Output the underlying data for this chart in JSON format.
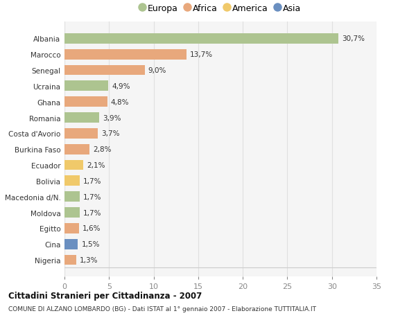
{
  "countries": [
    "Albania",
    "Marocco",
    "Senegal",
    "Ucraina",
    "Ghana",
    "Romania",
    "Costa d'Avorio",
    "Burkina Faso",
    "Ecuador",
    "Bolivia",
    "Macedonia d/N.",
    "Moldova",
    "Egitto",
    "Cina",
    "Nigeria"
  ],
  "values": [
    30.7,
    13.7,
    9.0,
    4.9,
    4.8,
    3.9,
    3.7,
    2.8,
    2.1,
    1.7,
    1.7,
    1.7,
    1.6,
    1.5,
    1.3
  ],
  "labels": [
    "30,7%",
    "13,7%",
    "9,0%",
    "4,9%",
    "4,8%",
    "3,9%",
    "3,7%",
    "2,8%",
    "2,1%",
    "1,7%",
    "1,7%",
    "1,7%",
    "1,6%",
    "1,5%",
    "1,3%"
  ],
  "continents": [
    "Europa",
    "Africa",
    "Africa",
    "Europa",
    "Africa",
    "Europa",
    "Africa",
    "Africa",
    "America",
    "America",
    "Europa",
    "Europa",
    "Africa",
    "Asia",
    "Africa"
  ],
  "colors": {
    "Europa": "#adc490",
    "Africa": "#e8a87c",
    "America": "#f0c96a",
    "Asia": "#6a8fc0"
  },
  "legend_order": [
    "Europa",
    "Africa",
    "America",
    "Asia"
  ],
  "title": "Cittadini Stranieri per Cittadinanza - 2007",
  "subtitle": "COMUNE DI ALZANO LOMBARDO (BG) - Dati ISTAT al 1° gennaio 2007 - Elaborazione TUTTITALIA.IT",
  "xlim": [
    0,
    35
  ],
  "xticks": [
    0,
    5,
    10,
    15,
    20,
    25,
    30,
    35
  ],
  "background_color": "#ffffff",
  "plot_bg_color": "#f5f5f5",
  "grid_color": "#e0e0e0",
  "bar_height": 0.65
}
